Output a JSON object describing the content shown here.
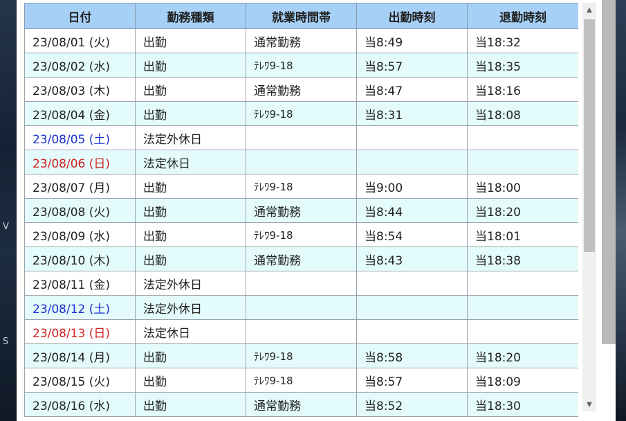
{
  "background": {
    "left_text_1": "V",
    "left_text_2": "S"
  },
  "table": {
    "headers": [
      "日付",
      "勤務種類",
      "就業時間帯",
      "出勤時刻",
      "退勤時刻"
    ],
    "rows": [
      {
        "date": "23/08/01 (火)",
        "type": "出勤",
        "slot": "通常勤務",
        "in": "当8:49",
        "out": "当18:32",
        "day": "weekday"
      },
      {
        "date": "23/08/02 (水)",
        "type": "出勤",
        "slot": "ﾃﾚﾜ9-18",
        "in": "当8:57",
        "out": "当18:35",
        "day": "weekday"
      },
      {
        "date": "23/08/03 (木)",
        "type": "出勤",
        "slot": "通常勤務",
        "in": "当8:47",
        "out": "当18:16",
        "day": "weekday"
      },
      {
        "date": "23/08/04 (金)",
        "type": "出勤",
        "slot": "ﾃﾚﾜ9-18",
        "in": "当8:31",
        "out": "当18:08",
        "day": "weekday"
      },
      {
        "date": "23/08/05 (土)",
        "type": "法定外休日",
        "slot": "",
        "in": "",
        "out": "",
        "day": "sat"
      },
      {
        "date": "23/08/06 (日)",
        "type": "法定休日",
        "slot": "",
        "in": "",
        "out": "",
        "day": "sun"
      },
      {
        "date": "23/08/07 (月)",
        "type": "出勤",
        "slot": "ﾃﾚﾜ9-18",
        "in": "当9:00",
        "out": "当18:00",
        "day": "weekday"
      },
      {
        "date": "23/08/08 (火)",
        "type": "出勤",
        "slot": "通常勤務",
        "in": "当8:44",
        "out": "当18:20",
        "day": "weekday"
      },
      {
        "date": "23/08/09 (水)",
        "type": "出勤",
        "slot": "ﾃﾚﾜ9-18",
        "in": "当8:54",
        "out": "当18:01",
        "day": "weekday"
      },
      {
        "date": "23/08/10 (木)",
        "type": "出勤",
        "slot": "通常勤務",
        "in": "当8:43",
        "out": "当18:38",
        "day": "weekday"
      },
      {
        "date": "23/08/11 (金)",
        "type": "法定外休日",
        "slot": "",
        "in": "",
        "out": "",
        "day": "weekday"
      },
      {
        "date": "23/08/12 (土)",
        "type": "法定外休日",
        "slot": "",
        "in": "",
        "out": "",
        "day": "sat"
      },
      {
        "date": "23/08/13 (日)",
        "type": "法定休日",
        "slot": "",
        "in": "",
        "out": "",
        "day": "sun"
      },
      {
        "date": "23/08/14 (月)",
        "type": "出勤",
        "slot": "ﾃﾚﾜ9-18",
        "in": "当8:58",
        "out": "当18:20",
        "day": "weekday"
      },
      {
        "date": "23/08/15 (火)",
        "type": "出勤",
        "slot": "ﾃﾚﾜ9-18",
        "in": "当8:57",
        "out": "当18:09",
        "day": "weekday"
      },
      {
        "date": "23/08/16 (水)",
        "type": "出勤",
        "slot": "通常勤務",
        "in": "当8:52",
        "out": "当18:30",
        "day": "weekday"
      }
    ]
  },
  "scrollbar": {
    "up_icon": "▲",
    "down_icon": "▼"
  }
}
